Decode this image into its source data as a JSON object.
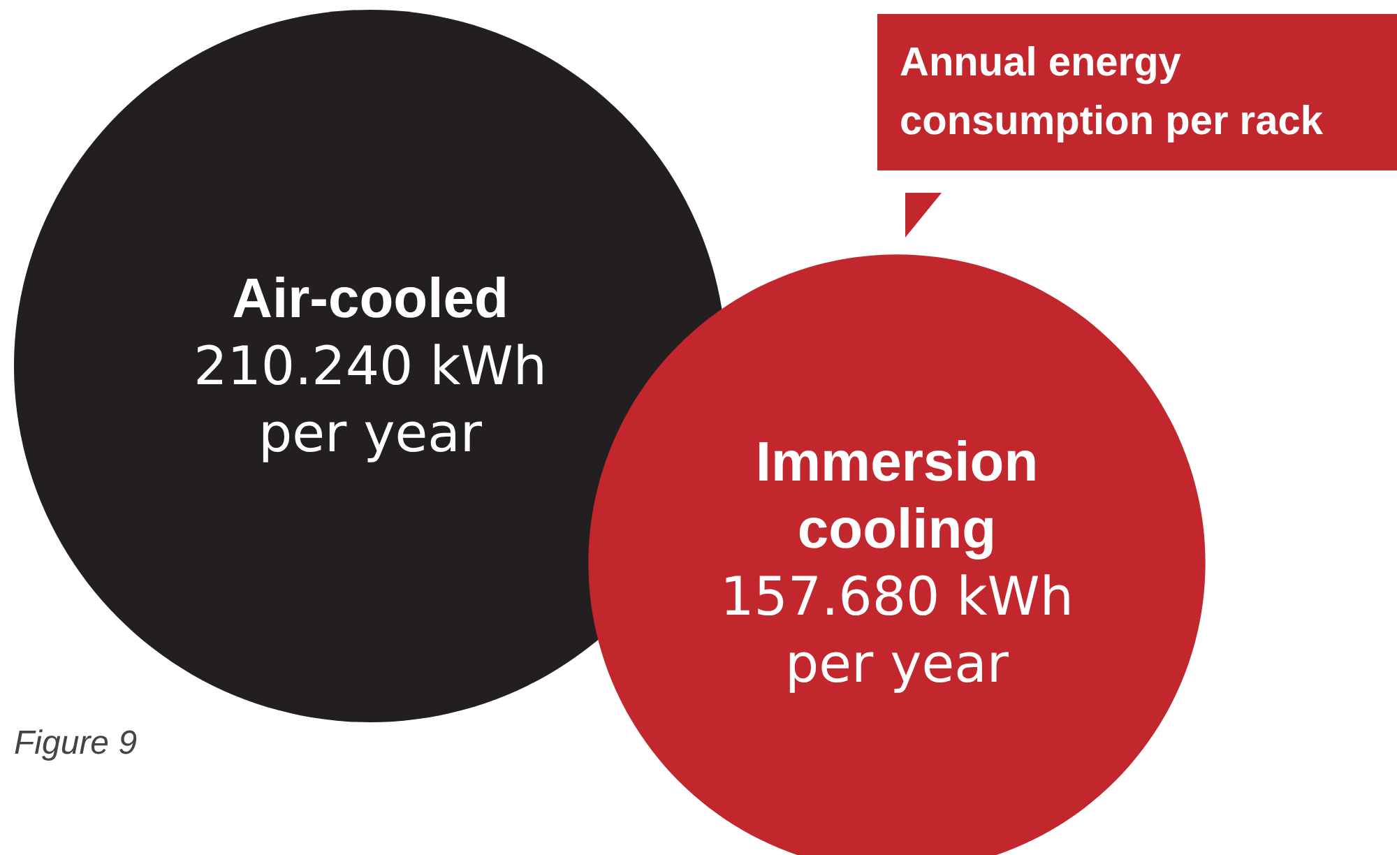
{
  "chart_data": {
    "type": "other",
    "title": "Annual energy consumption per rack",
    "categories": [
      "Air-cooled",
      "Immersion cooling"
    ],
    "values": [
      210240,
      157680
    ],
    "value_labels": [
      "210.240 kWh per year",
      "157.680 kWh per year"
    ],
    "colors": [
      "#231f20",
      "#c1272d"
    ],
    "annotations": [
      "Figure 9"
    ]
  }
}
